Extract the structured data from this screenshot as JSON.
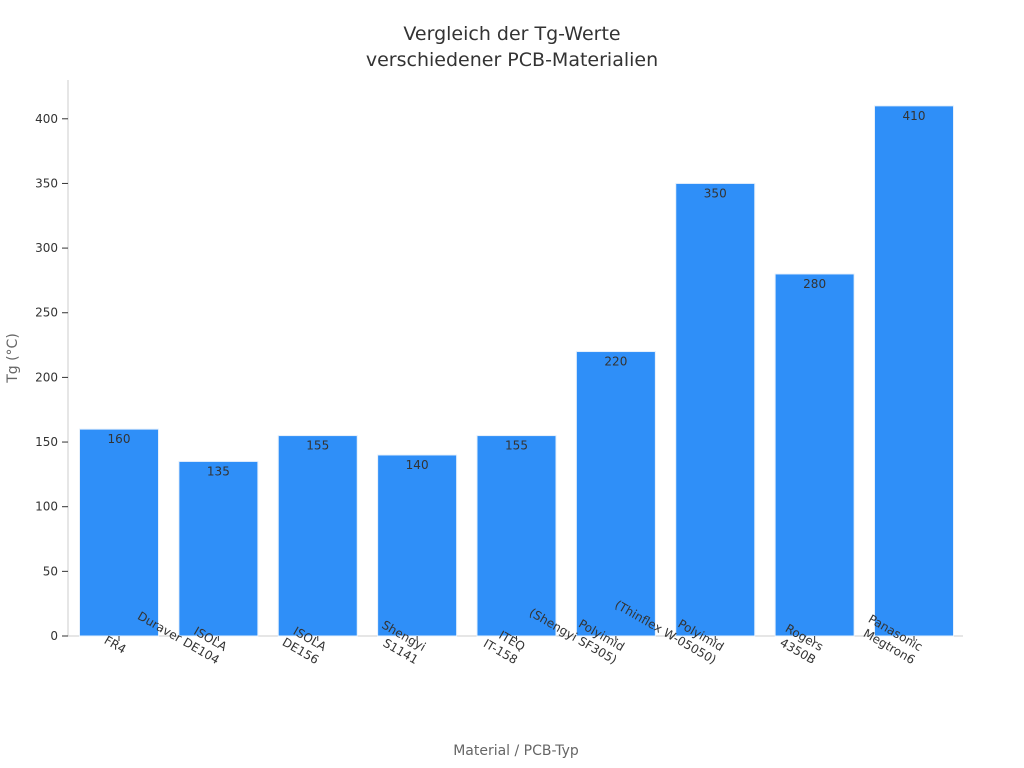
{
  "chart_data": {
    "type": "bar",
    "title_lines": [
      "Vergleich der Tg-Werte",
      "verschiedener PCB-Materialien"
    ],
    "xlabel": "Material / PCB-Typ",
    "ylabel": "Tg (°C)",
    "categories": [
      [
        "FR4"
      ],
      [
        "ISOLA",
        "Duraver DE104"
      ],
      [
        "ISOLA",
        "DE156"
      ],
      [
        "Shengyi",
        "S1141"
      ],
      [
        "ITEQ",
        "IT-158"
      ],
      [
        "Polyimid",
        "(Shengyi SF305)"
      ],
      [
        "Polyimid",
        "(Thinflex W-05050)"
      ],
      [
        "Rogers",
        "4350B"
      ],
      [
        "Panasonic",
        "Megtron6"
      ]
    ],
    "values": [
      160,
      135,
      155,
      140,
      155,
      220,
      350,
      280,
      410
    ],
    "ylim": [
      0,
      430
    ],
    "yticks": [
      0,
      50,
      100,
      150,
      200,
      250,
      300,
      350,
      400
    ],
    "bar_color": "#2f8ff8",
    "grid": false,
    "legend": "none"
  }
}
